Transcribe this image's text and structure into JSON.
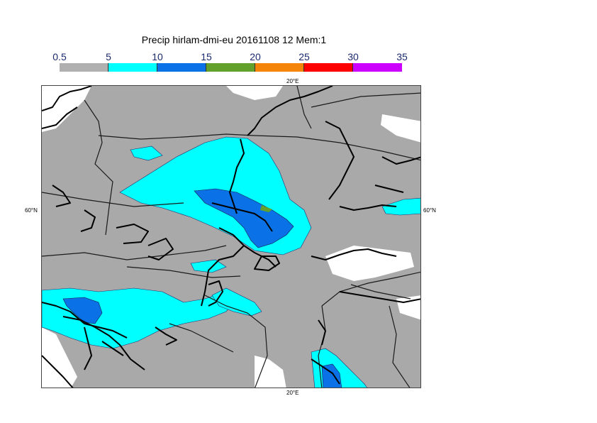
{
  "title": "Precip hirlam-dmi-eu 20161108 12 Mem:1",
  "legend": {
    "ticks": [
      "0.5",
      "5",
      "10",
      "15",
      "20",
      "25",
      "30",
      "35"
    ],
    "colors": [
      "#b0b0b0",
      "#00ffff",
      "#0a72e6",
      "#63a12c",
      "#f5840a",
      "#ff0000",
      "#cc00ff"
    ]
  },
  "map": {
    "lon_label_top": "20°E",
    "lon_label_bottom": "20°E",
    "lat_label_left": "60°N",
    "lat_label_right": "60°N",
    "background_color": "#a9a9a9"
  }
}
